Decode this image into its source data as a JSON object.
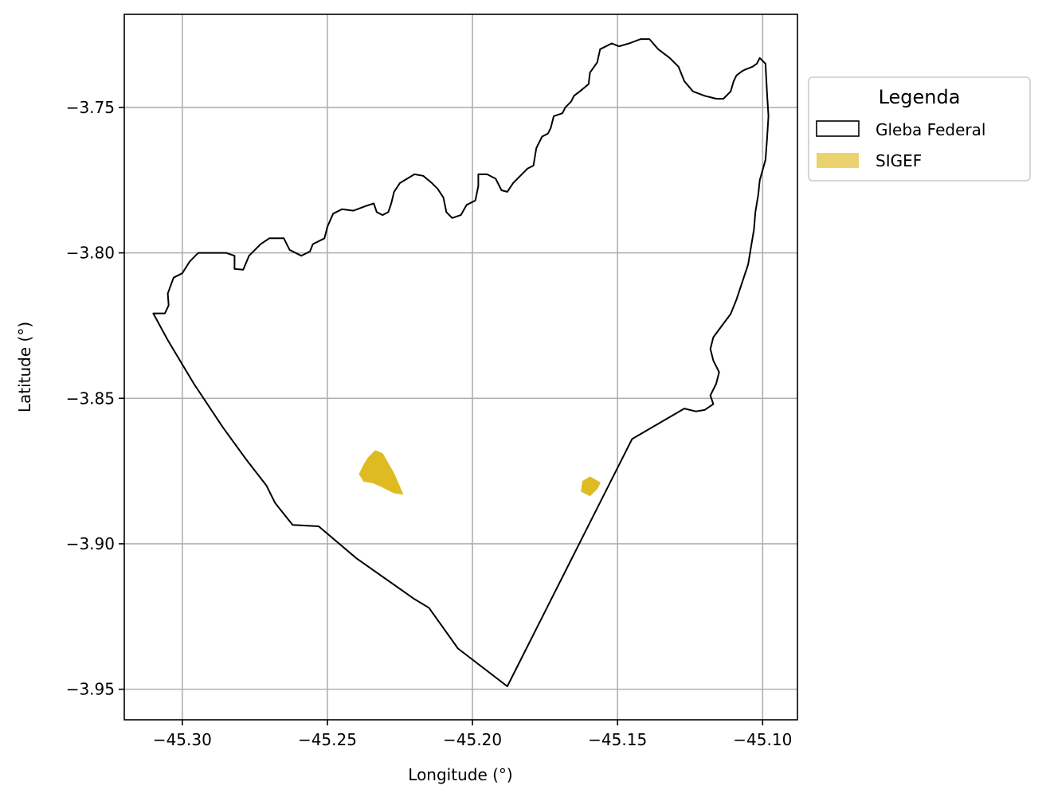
{
  "chart_data": {
    "type": "map",
    "xlabel": "Longitude (°)",
    "ylabel": "Latitude (°)",
    "xlim": [
      -45.32,
      -45.088
    ],
    "ylim": [
      -3.9605,
      -3.718
    ],
    "xticks": [
      -45.3,
      -45.25,
      -45.2,
      -45.15,
      -45.1
    ],
    "xtick_labels": [
      "−45.30",
      "−45.25",
      "−45.20",
      "−45.15",
      "−45.10"
    ],
    "yticks": [
      -3.75,
      -3.8,
      -3.85,
      -3.9,
      -3.95
    ],
    "ytick_labels": [
      "−3.75",
      "−3.80",
      "−3.85",
      "−3.90",
      "−3.95"
    ],
    "grid": true,
    "legend": {
      "title": "Legenda",
      "placement": "outside-right-top",
      "entries": [
        {
          "label": "Gleba Federal",
          "style": "outline",
          "edge_color": "#000000",
          "fill": "none"
        },
        {
          "label": "SIGEF",
          "style": "filled",
          "color": "#dfbb22"
        }
      ]
    },
    "layers": [
      {
        "name": "Gleba Federal",
        "type": "polygon-outline",
        "color": "#000000",
        "coordinates": [
          [
            -45.31,
            -3.8208
          ],
          [
            -45.306,
            -3.8208
          ],
          [
            -45.3047,
            -3.818
          ],
          [
            -45.305,
            -3.814
          ],
          [
            -45.303,
            -3.8085
          ],
          [
            -45.3,
            -3.807
          ],
          [
            -45.2975,
            -3.803
          ],
          [
            -45.2945,
            -3.8
          ],
          [
            -45.285,
            -3.8
          ],
          [
            -45.282,
            -3.801
          ],
          [
            -45.282,
            -3.8055
          ],
          [
            -45.279,
            -3.8058
          ],
          [
            -45.277,
            -3.801
          ],
          [
            -45.273,
            -3.797
          ],
          [
            -45.27,
            -3.795
          ],
          [
            -45.265,
            -3.795
          ],
          [
            -45.263,
            -3.799
          ],
          [
            -45.259,
            -3.801
          ],
          [
            -45.256,
            -3.7995
          ],
          [
            -45.255,
            -3.797
          ],
          [
            -45.251,
            -3.795
          ],
          [
            -45.25,
            -3.791
          ],
          [
            -45.248,
            -3.7865
          ],
          [
            -45.245,
            -3.785
          ],
          [
            -45.241,
            -3.7855
          ],
          [
            -45.237,
            -3.784
          ],
          [
            -45.234,
            -3.783
          ],
          [
            -45.233,
            -3.786
          ],
          [
            -45.231,
            -3.787
          ],
          [
            -45.229,
            -3.786
          ],
          [
            -45.228,
            -3.783
          ],
          [
            -45.227,
            -3.779
          ],
          [
            -45.225,
            -3.776
          ],
          [
            -45.22,
            -3.773
          ],
          [
            -45.217,
            -3.7735
          ],
          [
            -45.214,
            -3.776
          ],
          [
            -45.212,
            -3.778
          ],
          [
            -45.21,
            -3.781
          ],
          [
            -45.209,
            -3.786
          ],
          [
            -45.207,
            -3.788
          ],
          [
            -45.204,
            -3.787
          ],
          [
            -45.202,
            -3.7835
          ],
          [
            -45.199,
            -3.782
          ],
          [
            -45.198,
            -3.777
          ],
          [
            -45.198,
            -3.773
          ],
          [
            -45.195,
            -3.773
          ],
          [
            -45.192,
            -3.7745
          ],
          [
            -45.19,
            -3.7785
          ],
          [
            -45.188,
            -3.779
          ],
          [
            -45.186,
            -3.776
          ],
          [
            -45.183,
            -3.773
          ],
          [
            -45.181,
            -3.771
          ],
          [
            -45.179,
            -3.77
          ],
          [
            -45.178,
            -3.764
          ],
          [
            -45.176,
            -3.76
          ],
          [
            -45.174,
            -3.759
          ],
          [
            -45.173,
            -3.757
          ],
          [
            -45.172,
            -3.753
          ],
          [
            -45.169,
            -3.752
          ],
          [
            -45.168,
            -3.75
          ],
          [
            -45.166,
            -3.748
          ],
          [
            -45.165,
            -3.746
          ],
          [
            -45.163,
            -3.7445
          ],
          [
            -45.16,
            -3.742
          ],
          [
            -45.1595,
            -3.738
          ],
          [
            -45.157,
            -3.7345
          ],
          [
            -45.156,
            -3.73
          ],
          [
            -45.154,
            -3.729
          ],
          [
            -45.152,
            -3.728
          ],
          [
            -45.1495,
            -3.729
          ],
          [
            -45.146,
            -3.728
          ],
          [
            -45.142,
            -3.7265
          ],
          [
            -45.139,
            -3.7265
          ],
          [
            -45.136,
            -3.73
          ],
          [
            -45.132,
            -3.733
          ],
          [
            -45.129,
            -3.736
          ],
          [
            -45.127,
            -3.741
          ],
          [
            -45.124,
            -3.7445
          ],
          [
            -45.12,
            -3.746
          ],
          [
            -45.116,
            -3.747
          ],
          [
            -45.1135,
            -3.747
          ],
          [
            -45.111,
            -3.7445
          ],
          [
            -45.11,
            -3.741
          ],
          [
            -45.109,
            -3.739
          ],
          [
            -45.107,
            -3.7375
          ],
          [
            -45.106,
            -3.737
          ],
          [
            -45.1035,
            -3.736
          ],
          [
            -45.102,
            -3.735
          ],
          [
            -45.101,
            -3.733
          ],
          [
            -45.099,
            -3.735
          ],
          [
            -45.0985,
            -3.745
          ],
          [
            -45.098,
            -3.753
          ],
          [
            -45.0985,
            -3.761
          ],
          [
            -45.099,
            -3.768
          ],
          [
            -45.101,
            -3.775
          ],
          [
            -45.1015,
            -3.78
          ],
          [
            -45.1025,
            -3.786
          ],
          [
            -45.103,
            -3.792
          ],
          [
            -45.104,
            -3.798
          ],
          [
            -45.105,
            -3.804
          ],
          [
            -45.107,
            -3.81
          ],
          [
            -45.109,
            -3.816
          ],
          [
            -45.111,
            -3.821
          ],
          [
            -45.114,
            -3.825
          ],
          [
            -45.117,
            -3.829
          ],
          [
            -45.118,
            -3.833
          ],
          [
            -45.117,
            -3.837
          ],
          [
            -45.115,
            -3.841
          ],
          [
            -45.116,
            -3.845
          ],
          [
            -45.118,
            -3.849
          ],
          [
            -45.117,
            -3.852
          ],
          [
            -45.12,
            -3.854
          ],
          [
            -45.123,
            -3.8545
          ],
          [
            -45.127,
            -3.8535
          ],
          [
            -45.145,
            -3.864
          ],
          [
            -45.188,
            -3.949
          ],
          [
            -45.205,
            -3.936
          ],
          [
            -45.215,
            -3.922
          ],
          [
            -45.22,
            -3.919
          ],
          [
            -45.24,
            -3.905
          ],
          [
            -45.253,
            -3.894
          ],
          [
            -45.262,
            -3.8935
          ],
          [
            -45.268,
            -3.886
          ],
          [
            -45.271,
            -3.88
          ],
          [
            -45.278,
            -3.871
          ],
          [
            -45.286,
            -3.86
          ],
          [
            -45.296,
            -3.845
          ],
          [
            -45.305,
            -3.83
          ],
          [
            -45.31,
            -3.8208
          ]
        ]
      },
      {
        "name": "SIGEF",
        "type": "polygon-fill",
        "color": "#dfbb22",
        "parcels": [
          [
            [
              -45.2335,
              -3.868
            ],
            [
              -45.231,
              -3.869
            ],
            [
              -45.227,
              -3.876
            ],
            [
              -45.224,
              -3.883
            ],
            [
              -45.227,
              -3.8825
            ],
            [
              -45.23,
              -3.881
            ],
            [
              -45.232,
              -3.88
            ],
            [
              -45.2345,
              -3.879
            ],
            [
              -45.2375,
              -3.8785
            ],
            [
              -45.239,
              -3.876
            ],
            [
              -45.2375,
              -3.873
            ],
            [
              -45.236,
              -3.8705
            ]
          ],
          [
            [
              -45.1595,
              -3.877
            ],
            [
              -45.162,
              -3.8785
            ],
            [
              -45.1625,
              -3.882
            ],
            [
              -45.1595,
              -3.8835
            ],
            [
              -45.157,
              -3.881
            ],
            [
              -45.156,
              -3.879
            ]
          ]
        ]
      }
    ]
  }
}
